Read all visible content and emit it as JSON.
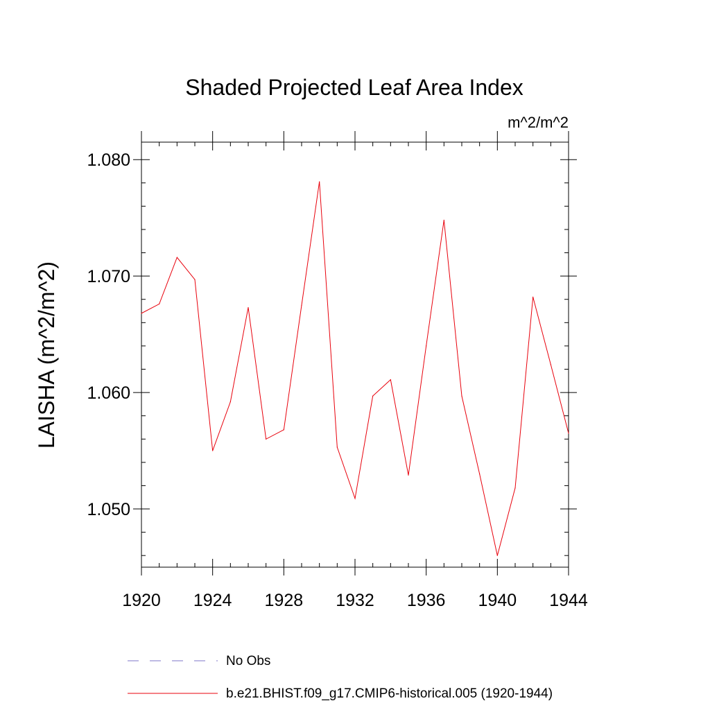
{
  "chart_data": {
    "type": "line",
    "title": "Shaded Projected Leaf Area Index",
    "units_label": "m^2/m^2",
    "xlabel": "",
    "ylabel": "LAISHA  (m^2/m^2)",
    "xlim": [
      1920,
      1944
    ],
    "ylim": [
      1.045,
      1.0815
    ],
    "x_ticks": [
      1920,
      1924,
      1928,
      1932,
      1936,
      1940,
      1944
    ],
    "x_tick_labels": [
      "1920",
      "1924",
      "1928",
      "1932",
      "1936",
      "1940",
      "1944"
    ],
    "y_ticks": [
      1.05,
      1.06,
      1.07,
      1.08
    ],
    "y_tick_labels": [
      "1.050",
      "1.060",
      "1.070",
      "1.080"
    ],
    "y_minor_step": 0.002,
    "x_minor_step": 1,
    "series": [
      {
        "name": "b.e21.BHIST.f09_g17.CMIP6-historical.005 (1920-1944)",
        "color": "#e8000b",
        "style": "solid",
        "x": [
          1920,
          1921,
          1922,
          1923,
          1924,
          1925,
          1926,
          1927,
          1928,
          1929,
          1930,
          1931,
          1932,
          1933,
          1934,
          1935,
          1936,
          1937,
          1938,
          1939,
          1940,
          1941,
          1942,
          1943,
          1944
        ],
        "values": [
          1.0668,
          1.0676,
          1.0716,
          1.0697,
          1.055,
          1.0592,
          1.0673,
          1.056,
          1.0568,
          1.0675,
          1.0781,
          1.0553,
          1.0509,
          1.0597,
          1.0611,
          1.0529,
          1.064,
          1.0748,
          1.0597,
          1.053,
          1.046,
          1.0518,
          1.0682,
          1.0624,
          1.0565
        ]
      }
    ],
    "legend": [
      {
        "label": "No Obs",
        "color": "#7d75c9",
        "style": "dashed"
      },
      {
        "label": "b.e21.BHIST.f09_g17.CMIP6-historical.005 (1920-1944)",
        "color": "#e8000b",
        "style": "solid"
      }
    ]
  }
}
